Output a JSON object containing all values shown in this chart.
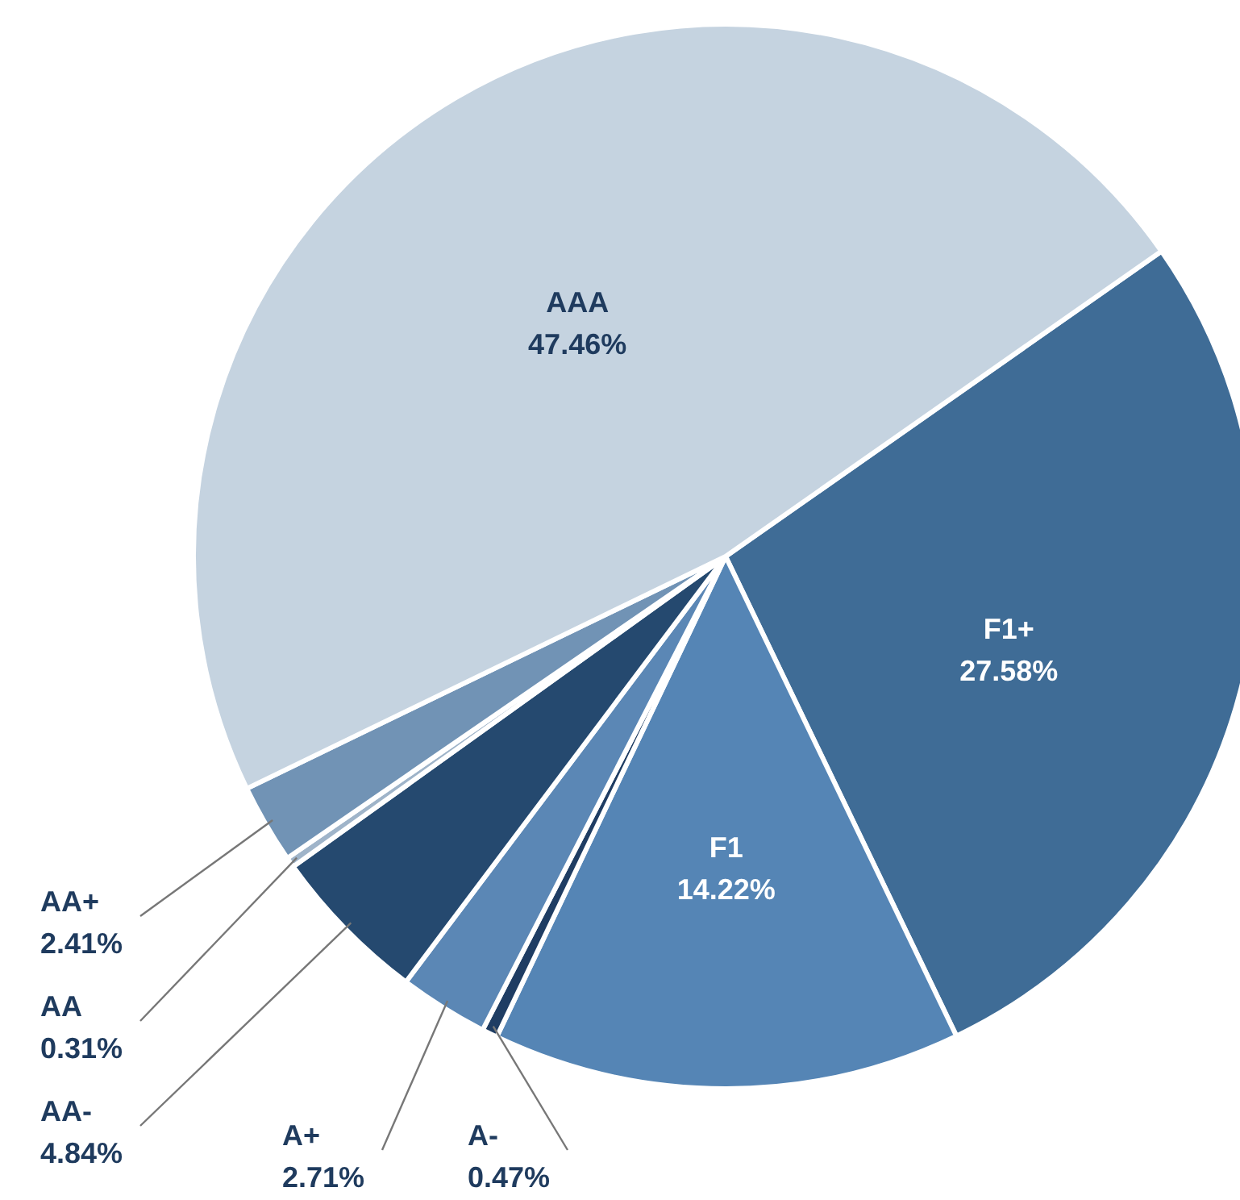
{
  "chart_data": {
    "type": "pie",
    "categories": [
      "F1+",
      "F1",
      "A-",
      "A+",
      "AA-",
      "AA",
      "AA+",
      "AAA"
    ],
    "values": [
      27.58,
      14.22,
      0.47,
      2.71,
      4.84,
      0.31,
      2.41,
      47.46
    ],
    "value_labels": [
      "27.58%",
      "14.22%",
      "0.47%",
      "2.71%",
      "4.84%",
      "0.31%",
      "2.41%",
      "47.46%"
    ],
    "colors": [
      "#3f6c96",
      "#5585b5",
      "#1f3d63",
      "#5b87b5",
      "#25496f",
      "#9fb4c9",
      "#7193b5",
      "#c5d3e0"
    ]
  }
}
